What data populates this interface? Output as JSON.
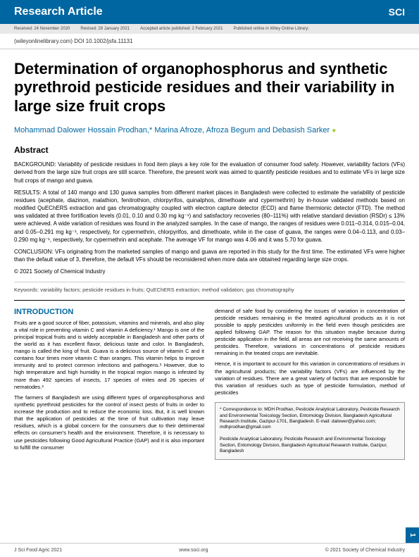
{
  "header": {
    "category": "Research Article",
    "logo": "SCI"
  },
  "meta": {
    "received": "Received: 24 November 2020",
    "revised": "Revised: 28 January 2021",
    "accepted": "Accepted article published: 2 February 2021",
    "published": "Published online in Wiley Online Library:"
  },
  "doi": "(wileyonlinelibrary.com) DOI 10.1002/jsfa.11131",
  "title": "Determination of organophosphorus and synthetic pyrethroid pesticide residues and their variability in large size fruit crops",
  "authors": "Mohammad Dalower Hossain Prodhan,* Marina Afroze, Afroza Begum and Debasish Sarker",
  "abstract": {
    "heading": "Abstract",
    "background": "BACKGROUND: Variability of pesticide residues in food item plays a key role for the evaluation of consumer food safety. However, variability factors (VFs) derived from the large size fruit crops are still scarce. Therefore, the present work was aimed to quantify pesticide residues and to estimate VFs in large size fruit crops of mango and guava.",
    "results": "RESULTS: A total of 140 mango and 130 guava samples from different market places in Bangladesh were collected to estimate the variability of pesticide residues (acephate, diazinon, malathion, fenitrothion, chlorpyrifos, quinalphos, dimethoate and cypermethrin) by in-house validated methods based on modified QuEChERS extraction and gas chromatography coupled with electron capture detector (ECD) and flame thermionic detector (FTD). The method was validated at three fortification levels (0.01, 0.10 and 0.30 mg kg⁻¹) and satisfactory recoveries (80–111%) with relative standard deviation (RSDr) ≤ 13% were achieved. A wide variation of residues was found in the analyzed samples. In the case of mango, the ranges of residues were 0.011–0.314, 0.015–0.04, and 0.05–0.291 mg kg⁻¹, respectively, for cypermethrin, chlorpyrifos, and dimethoate, while in the case of guava, the ranges were 0.04–0.113, and 0.03–0.290 mg kg⁻¹, respectively, for cypermethrin and acephate. The average VF for mango was 4.06 and it was 5.70 for guava.",
    "conclusion": "CONCLUSION: VFs originating from the marketed samples of mango and guava are reported in this study for the first time. The estimated VFs were higher than the default value of 3, therefore, the default VFs should be reconsidered when more data are obtained regarding large size crops.",
    "copyright": "© 2021 Society of Chemical Industry"
  },
  "keywords": "Keywords: variability factors; pesticide residues in fruits; QuEChERS extraction; method validation; gas chromatography",
  "intro": {
    "heading": "INTRODUCTION",
    "p1": "Fruits are a good source of fiber, potassium, vitamins and minerals, and also play a vital role in preventing vitamin C and vitamin A deficiency.¹ Mango is one of the principal tropical fruits and is widely acceptable in Bangladesh and other parts of the world as it has excellent flavor, delicious taste and color. In Bangladesh, mango is called the king of fruit. Guava is a delicious source of vitamin C and it contains four times more vitamin C than oranges. This vitamin helps to improve immunity and to protect common infections and pathogens.² However, due to high temperature and high humidity in the tropical region mango is infested by more than 492 species of insects, 17 species of mites and 26 species of nematodes.³",
    "p2": "The farmers of Bangladesh are using different types of organophosphorus and synthetic pyrethroid pesticides for the control of insect pests of fruits in order to increase the production and to reduce the economic loss. But, it is well known that the application of pesticides at the time of fruit cultivation may leave residues, which is a global concern for the consumers due to their detrimental effects on consumer's health and the environment. Therefore, it is necessary to use pesticides following Good Agricultural Practice (GAP) and it is also important to fulfill the consumer",
    "p3": "demand of safe food by considering the issues of variation in concentration of pesticide residues remaining in the treated agricultural products as it is not possible to apply pesticides uniformly in the field even though pesticides are applied following GAP. The reason for this situation maybe because during pesticide application in the field, all areas are not receiving the same amounts of pesticides. Therefore, variations in concentrations of pesticide residues remaining in the treated crops are inevitable.",
    "p4": "Hence, it is important to account for this variation in concentrations of residues in the agricultural products; the variability factors (VFs) are influenced by the variation of residues. There are a great variety of factors that are responsible for this variation of residues such as type of pesticide formulation, method of pesticides"
  },
  "correspondence": {
    "line1": "* Correspondence to: MDH Prodhan, Pesticide Analytical Laboratory, Pesticide Research and Environmental Toxicology Section, Entomology Division, Bangladesh Agricultural Research Institute, Gazipur-1701, Bangladesh. E-mail: dalower@yahoo.com; mdhprodhan@gmail.com",
    "line2": "Pesticide Analytical Laboratory, Pesticide Research and Environmental Toxicology Section, Entomology Division, Bangladesh Agricultural Research Institute, Gazipur, Bangladesh"
  },
  "footer": {
    "left": "J Sci Food Agric 2021",
    "center": "www.soci.org",
    "right": "© 2021 Society of Chemical Industry"
  },
  "page": "1"
}
